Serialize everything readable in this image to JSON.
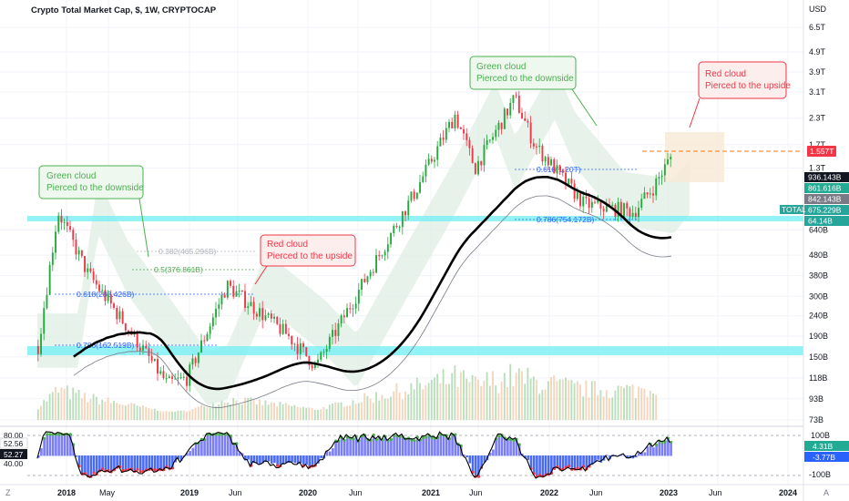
{
  "title": "Crypto Total Market Cap, $, 1W, CRYPTOCAP",
  "currency": "USD",
  "chart_data": {
    "type": "candlestick",
    "title": "Crypto Total Market Cap, $, 1W, CRYPTOCAP",
    "y_scale": "log",
    "y_ticks": [
      "6.5T",
      "4.9T",
      "3.9T",
      "3.1T",
      "2.3T",
      "1.7T",
      "1.3T",
      "640B",
      "480B",
      "380B",
      "300B",
      "240B",
      "190B",
      "150B",
      "118B",
      "93B",
      "73B"
    ],
    "x_ticks": [
      "2018",
      "May",
      "2019",
      "Jun",
      "2020",
      "Jun",
      "2021",
      "Jun",
      "2022",
      "Jun",
      "2023",
      "Jun",
      "2024"
    ],
    "price_path": [
      {
        "date": "2017-11",
        "value": 170
      },
      {
        "date": "2018-01",
        "value": 790
      },
      {
        "date": "2018-04",
        "value": 390
      },
      {
        "date": "2018-08",
        "value": 210
      },
      {
        "date": "2018-12",
        "value": 110
      },
      {
        "date": "2019-02",
        "value": 118
      },
      {
        "date": "2019-06",
        "value": 340
      },
      {
        "date": "2019-12",
        "value": 195
      },
      {
        "date": "2020-03",
        "value": 135
      },
      {
        "date": "2020-08",
        "value": 370
      },
      {
        "date": "2021-01",
        "value": 1000
      },
      {
        "date": "2021-05",
        "value": 2400
      },
      {
        "date": "2021-07",
        "value": 1300
      },
      {
        "date": "2021-11",
        "value": 2900
      },
      {
        "date": "2022-01",
        "value": 1700
      },
      {
        "date": "2022-06",
        "value": 860
      },
      {
        "date": "2022-11",
        "value": 790
      },
      {
        "date": "2023-01",
        "value": 1050
      },
      {
        "date": "2023-03",
        "value": 1557
      }
    ],
    "last_price": "1.557T",
    "price_badges": [
      {
        "text": "936.143B",
        "color": "#131722"
      },
      {
        "text": "861.616B",
        "color": "#22ab94"
      },
      {
        "text": "842.143B",
        "color": "#787b86"
      },
      {
        "text": "675.229B",
        "color": "#26a69a"
      },
      {
        "text": "64.14B",
        "color": "#26a69a"
      }
    ],
    "total_tag": "TOTAL",
    "fib_levels": [
      {
        "ratio": "0.382",
        "value": "0.382(465.296B)"
      },
      {
        "ratio": "0.5",
        "value": "0.5(376.861B)"
      },
      {
        "ratio": "0.618",
        "value": "0.618(288.426B)"
      },
      {
        "ratio": "0.786",
        "value": "0.786(162.519B)"
      },
      {
        "ratio": "0.618",
        "value": "0.618(1.20T)"
      },
      {
        "ratio": "0.786",
        "value": "0.786(754.172B)"
      }
    ],
    "annotations": [
      {
        "line1": "Green cloud",
        "line2": "Pierced to the downside",
        "color": "#4caf50"
      },
      {
        "line1": "Red cloud",
        "line2": "Pierced to the upside",
        "color": "#f23645"
      },
      {
        "line1": "Green cloud",
        "line2": "Pierced to the downside",
        "color": "#4caf50"
      },
      {
        "line1": "Red cloud",
        "line2": "Pierced to the upside",
        "color": "#f23645"
      }
    ],
    "oscillator": {
      "left_ticks": [
        "80.00",
        "40.00"
      ],
      "left_badges": [
        "52.56",
        "52.27"
      ],
      "right_ticks": [
        "100B",
        "-100B"
      ],
      "right_badges": [
        "4.31B",
        "-3.77B"
      ]
    },
    "footer": {
      "left_icon": "Z",
      "right_icon": "A"
    },
    "colors": {
      "up": "#22ab3a",
      "down": "#f23645",
      "ma": "#000000",
      "cloud_green": "#dfeee3",
      "cloud_red": "#f7e9d6",
      "support": "#7ff0f5"
    }
  }
}
